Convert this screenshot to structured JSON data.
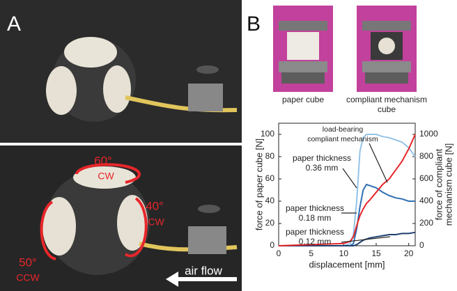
{
  "panel_a": {
    "label": "A",
    "annotations": [
      "60°",
      "CW",
      "40°",
      "CW",
      "50°",
      "CCW"
    ],
    "flow_label": "air flow"
  },
  "panel_b": {
    "label": "B",
    "photo_captions": [
      [
        "paper cube"
      ],
      [
        "compliant mechanism",
        "cube"
      ]
    ]
  },
  "chart_data": {
    "type": "line",
    "x_label": "displacement [mm]",
    "y_label": "force of paper cube [N]",
    "y2_label": [
      "force of compliant",
      "mechanism cube [N]"
    ],
    "x": [
      0,
      5,
      10,
      11,
      11.5,
      12,
      12.5,
      13,
      13.5,
      14,
      15,
      16,
      17,
      18,
      19,
      20,
      21
    ],
    "xlim": [
      0,
      21
    ],
    "xticks": [
      0,
      5,
      10,
      15,
      20
    ],
    "ylim": [
      0,
      110
    ],
    "yticks": [
      0,
      20,
      40,
      60,
      80,
      100
    ],
    "y2lim": [
      0,
      1100
    ],
    "y2ticks": [
      0,
      200,
      400,
      600,
      800,
      1000
    ],
    "series": [
      {
        "color": "#95c3e8",
        "label_lines": [
          "paper thickness",
          "0.36 mm"
        ],
        "values": [
          0,
          0,
          0,
          2,
          10,
          40,
          85,
          97,
          100,
          100,
          100,
          98,
          97,
          95,
          93,
          88,
          80
        ]
      },
      {
        "color": "#2e6fb2",
        "label_lines": [
          "paper thickness",
          "0.18 mm"
        ],
        "values": [
          0,
          0,
          0,
          0,
          2,
          15,
          35,
          50,
          55,
          54,
          52,
          48,
          45,
          43,
          42,
          40,
          40
        ]
      },
      {
        "color": "#1c3f6e",
        "label_lines": [
          "paper thickness",
          "0.12 mm"
        ],
        "values": [
          0,
          0,
          0,
          0,
          0,
          1,
          3,
          5,
          6,
          7,
          8,
          9,
          10,
          10,
          11,
          11,
          12
        ]
      },
      {
        "color": "#e8262a",
        "axis": "y2",
        "label_lines": [
          "load-bearing",
          "compliant mechanism"
        ],
        "values": [
          0,
          10,
          20,
          40,
          80,
          180,
          270,
          330,
          380,
          410,
          480,
          550,
          600,
          680,
          760,
          870,
          1000
        ]
      }
    ]
  }
}
